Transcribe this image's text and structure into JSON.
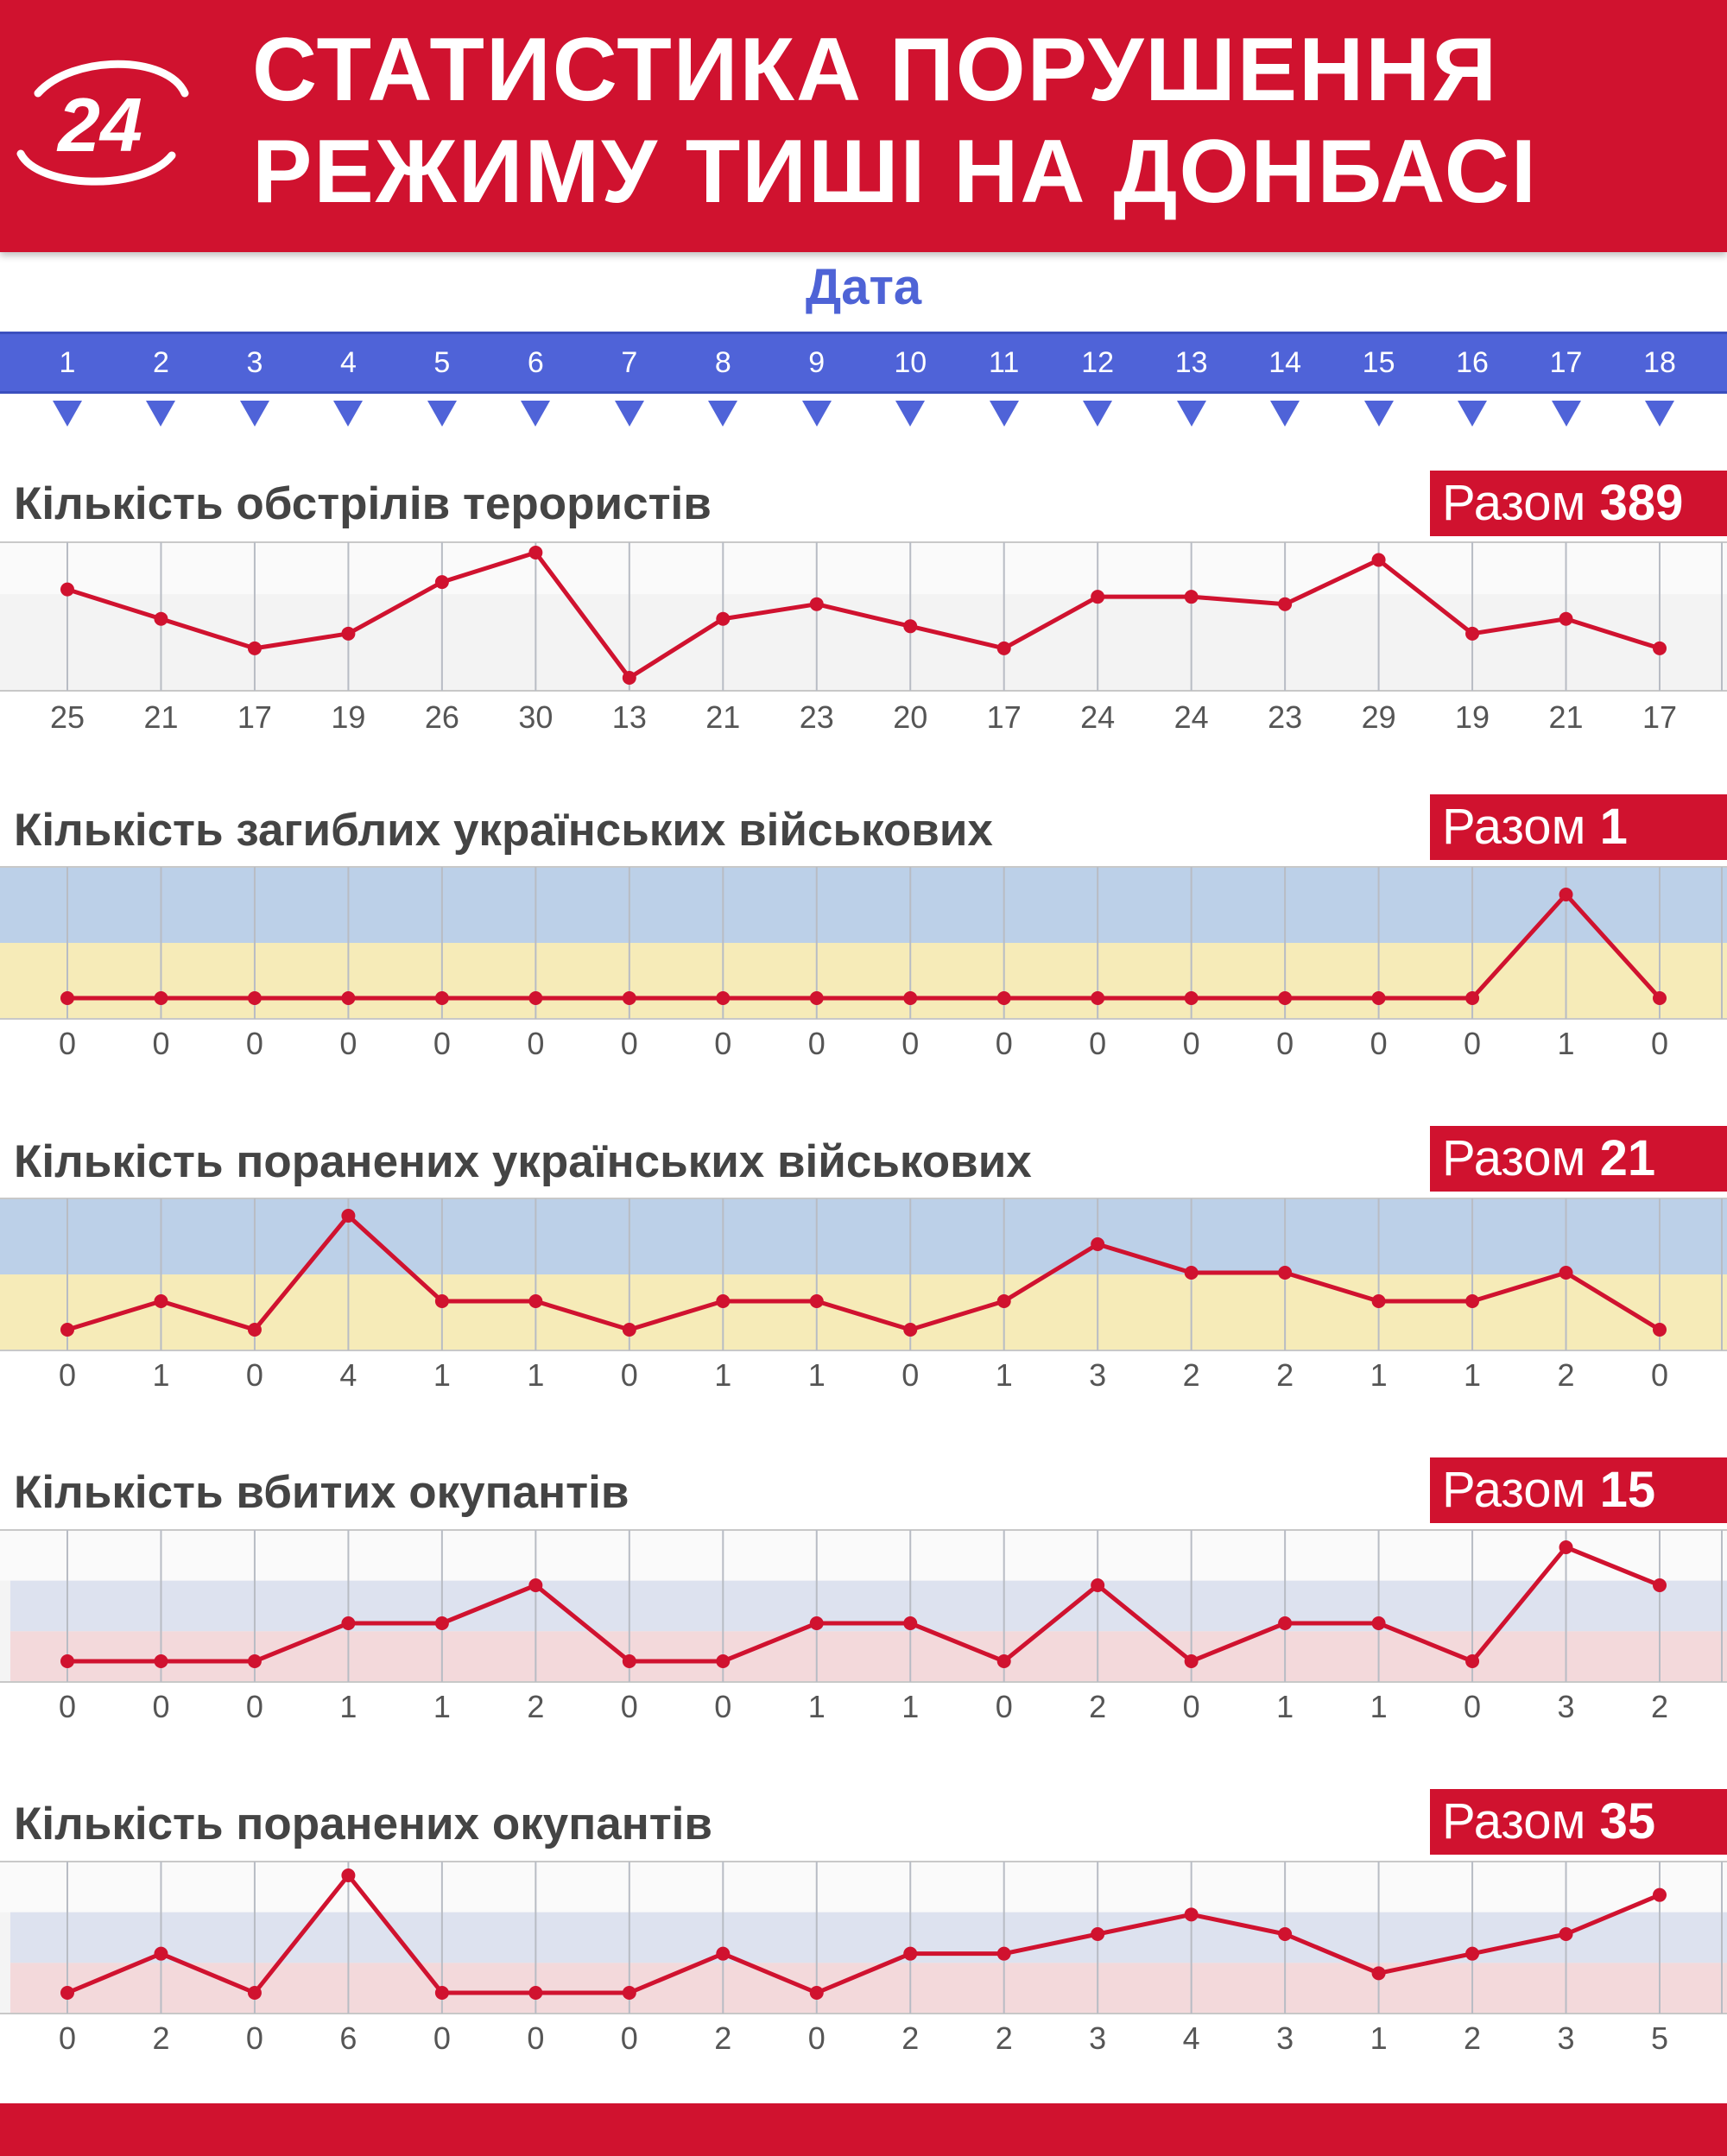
{
  "header": {
    "logo_text": "24",
    "title_line1": "СТАТИСТИКА ПОРУШЕННЯ",
    "title_line2": "РЕЖИМУ ТИШІ НА ДОНБАСІ",
    "background_color": "#d0122f"
  },
  "date_axis": {
    "label": "Дата",
    "days": [
      "1",
      "2",
      "3",
      "4",
      "5",
      "6",
      "7",
      "8",
      "9",
      "10",
      "11",
      "12",
      "13",
      "14",
      "15",
      "16",
      "17",
      "18"
    ],
    "color": "#4f63d8"
  },
  "total_prefix": "Разом",
  "chart_data": [
    {
      "type": "line",
      "title": "Кількість обстрілів терористів",
      "total": "389",
      "x": [
        1,
        2,
        3,
        4,
        5,
        6,
        7,
        8,
        9,
        10,
        11,
        12,
        13,
        14,
        15,
        16,
        17,
        18
      ],
      "values": [
        25,
        21,
        17,
        19,
        26,
        30,
        13,
        21,
        23,
        20,
        17,
        24,
        24,
        23,
        29,
        19,
        21,
        17
      ],
      "background": "grey",
      "line_color": "#d0122f"
    },
    {
      "type": "line",
      "title": "Кількість загиблих українських військових",
      "total": "1",
      "x": [
        1,
        2,
        3,
        4,
        5,
        6,
        7,
        8,
        9,
        10,
        11,
        12,
        13,
        14,
        15,
        16,
        17,
        18
      ],
      "values": [
        0,
        0,
        0,
        0,
        0,
        0,
        0,
        0,
        0,
        0,
        0,
        0,
        0,
        0,
        0,
        0,
        1,
        0
      ],
      "background": "ukraine-flag",
      "line_color": "#d0122f"
    },
    {
      "type": "line",
      "title": "Кількість поранених українських військових",
      "total": "21",
      "x": [
        1,
        2,
        3,
        4,
        5,
        6,
        7,
        8,
        9,
        10,
        11,
        12,
        13,
        14,
        15,
        16,
        17,
        18
      ],
      "values": [
        0,
        1,
        0,
        4,
        1,
        1,
        0,
        1,
        1,
        0,
        1,
        3,
        2,
        2,
        1,
        1,
        2,
        0
      ],
      "background": "ukraine-flag",
      "line_color": "#d0122f"
    },
    {
      "type": "line",
      "title": "Кількість вбитих окупантів",
      "total": "15",
      "x": [
        1,
        2,
        3,
        4,
        5,
        6,
        7,
        8,
        9,
        10,
        11,
        12,
        13,
        14,
        15,
        16,
        17,
        18
      ],
      "values": [
        0,
        0,
        0,
        1,
        1,
        2,
        0,
        0,
        1,
        1,
        0,
        2,
        0,
        1,
        1,
        0,
        3,
        2
      ],
      "background": "russia-flag",
      "line_color": "#d0122f"
    },
    {
      "type": "line",
      "title": "Кількість поранених окупантів",
      "total": "35",
      "x": [
        1,
        2,
        3,
        4,
        5,
        6,
        7,
        8,
        9,
        10,
        11,
        12,
        13,
        14,
        15,
        16,
        17,
        18
      ],
      "values": [
        0,
        2,
        0,
        6,
        0,
        0,
        0,
        2,
        0,
        2,
        2,
        3,
        4,
        3,
        1,
        2,
        3,
        5
      ],
      "background": "russia-flag",
      "line_color": "#d0122f"
    }
  ]
}
